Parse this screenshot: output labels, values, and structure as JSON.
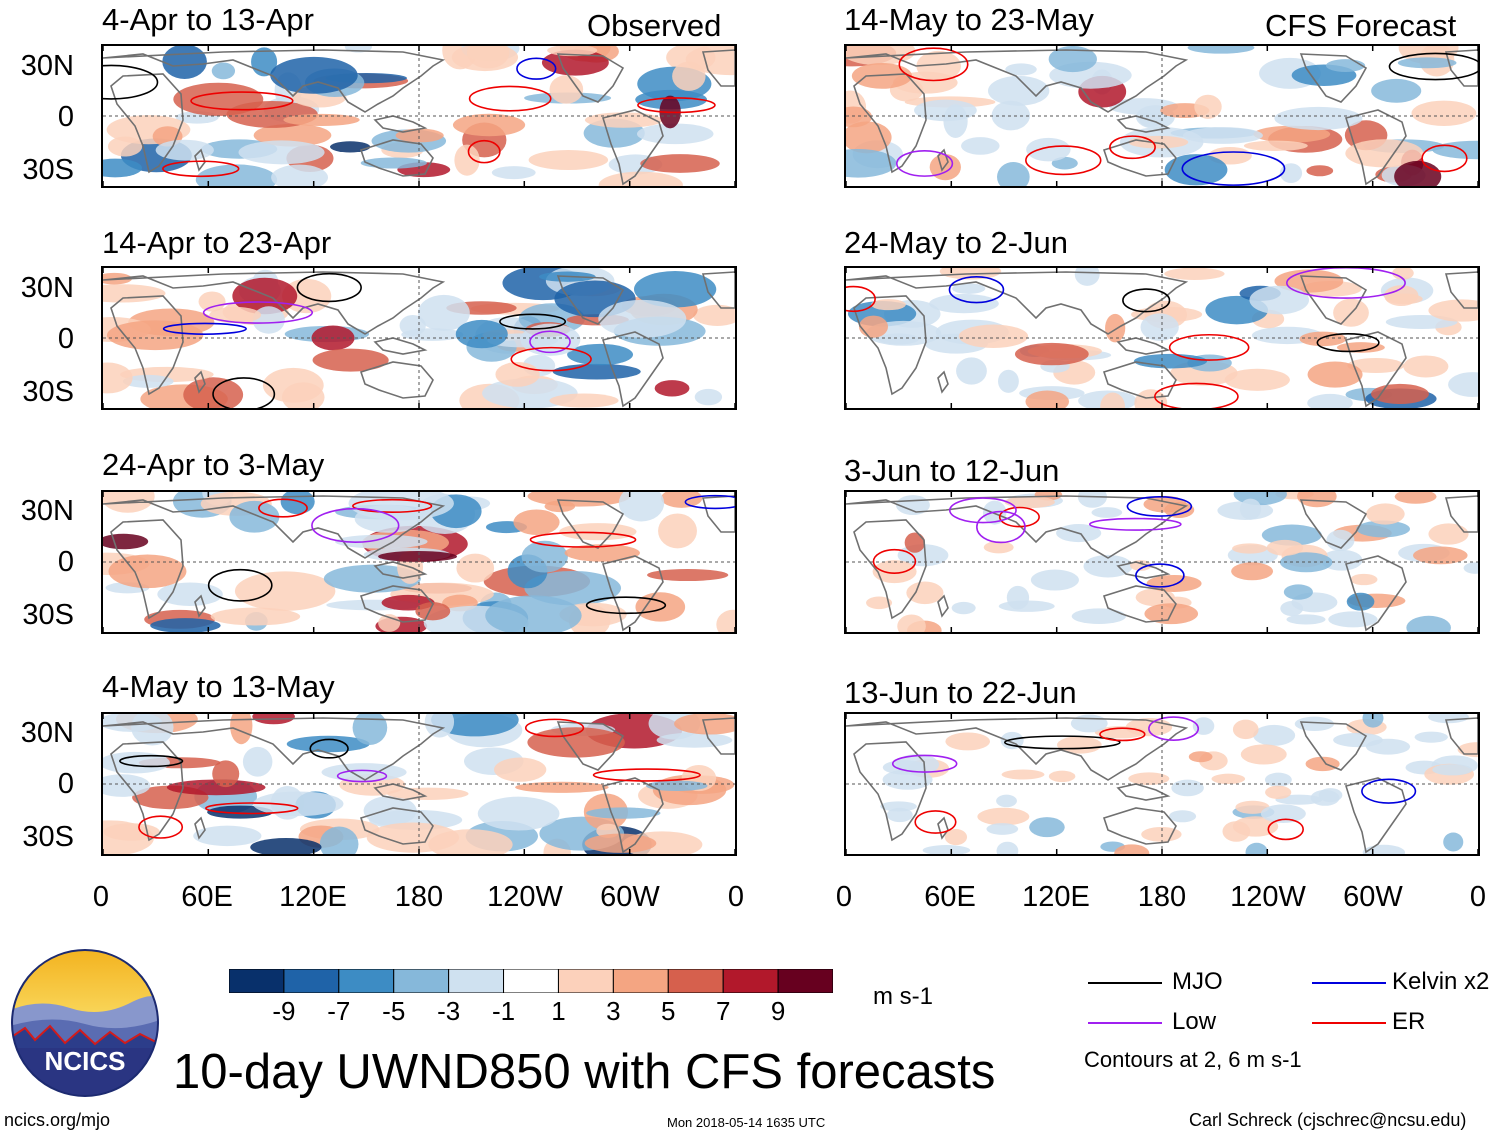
{
  "chart_data": {
    "type": "heatmap",
    "title": "10-day UWND850 with CFS forecasts",
    "variable": "UWND850",
    "units": "m s-1",
    "columns": [
      {
        "header": "Observed",
        "panels": [
          "4-Apr to 13-Apr",
          "14-Apr to 23-Apr",
          "24-Apr to 3-May",
          "4-May to 13-May"
        ]
      },
      {
        "header": "CFS Forecast",
        "panels": [
          "14-May to 23-May",
          "24-May to 2-Jun",
          "3-Jun to 12-Jun",
          "13-Jun to 22-Jun"
        ]
      }
    ],
    "y_ticks": [
      "30N",
      "0",
      "30S"
    ],
    "x_ticks": [
      "0",
      "60E",
      "120E",
      "180",
      "120W",
      "60W",
      "0"
    ],
    "colorbar": {
      "labels": [
        "-9",
        "-7",
        "-5",
        "-3",
        "-1",
        "1",
        "3",
        "5",
        "7",
        "9"
      ],
      "colors": [
        "#08306b",
        "#1f63a8",
        "#3d8cc4",
        "#86b8da",
        "#cfe1f0",
        "#ffffff",
        "#fcd1bb",
        "#f4a582",
        "#d6604d",
        "#b2182b",
        "#67001f"
      ]
    },
    "legend": [
      {
        "label": "MJO",
        "color": "#000000"
      },
      {
        "label": "Kelvin x2",
        "color": "#0000dd"
      },
      {
        "label": "Low",
        "color": "#a020f0"
      },
      {
        "label": "ER",
        "color": "#ee0000"
      }
    ],
    "contour_note": "Contours at 2, 6 m s-1"
  },
  "footer": {
    "site": "ncics.org/mjo",
    "timestamp": "Mon 2018-05-14 1635 UTC",
    "author": "Carl Schreck (cjschrec@ncsu.edu)",
    "logo_text": "NCICS"
  }
}
